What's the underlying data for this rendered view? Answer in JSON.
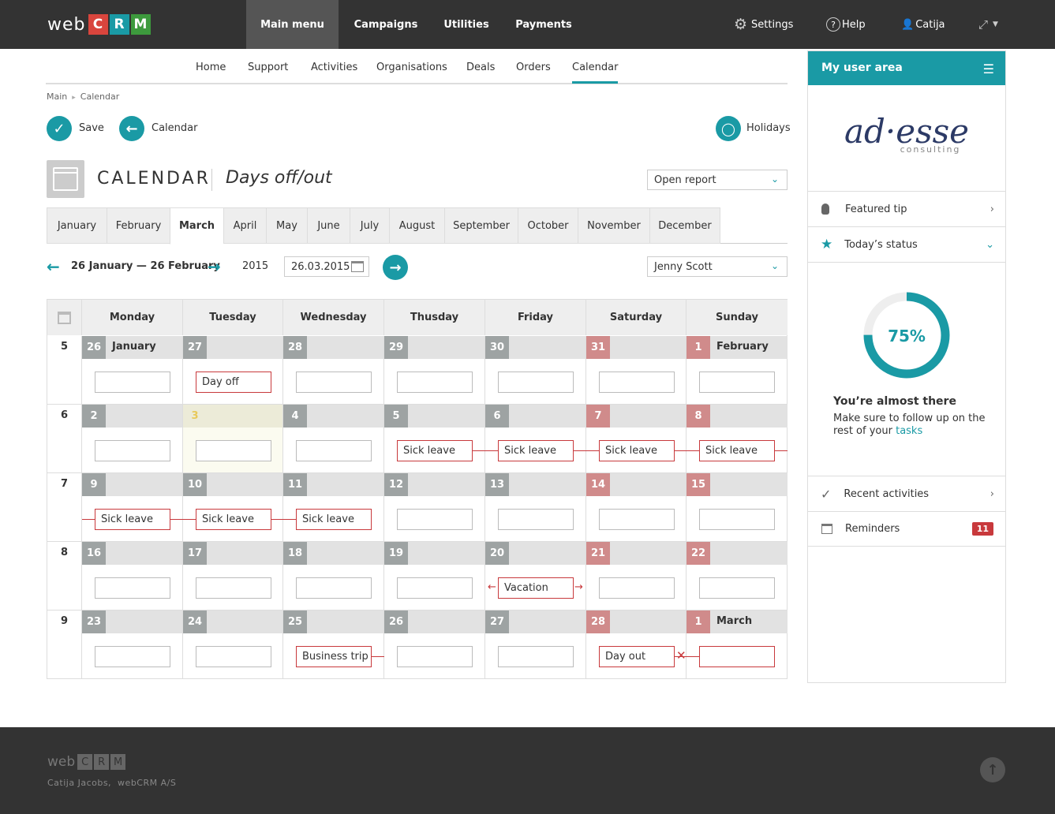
{
  "topbar": {
    "logo_web": "web",
    "logo_c": "C",
    "logo_r": "R",
    "logo_m": "M",
    "nav": [
      "Main menu",
      "Campaigns",
      "Utilities",
      "Payments"
    ],
    "settings": "Settings",
    "help": "Help",
    "user": "Catija"
  },
  "subnav": [
    "Home",
    "Support",
    "Activities",
    "Organisations",
    "Deals",
    "Orders",
    "Calendar"
  ],
  "breadcrumb": [
    "Main",
    "Calendar"
  ],
  "actions": {
    "save": "Save",
    "calendar": "Calendar",
    "holidays": "Holidays"
  },
  "title": {
    "main": "CALENDAR",
    "sub": "Days off/out"
  },
  "report_select": "Open report",
  "months": [
    "January",
    "February",
    "March",
    "April",
    "May",
    "June",
    "July",
    "August",
    "September",
    "October",
    "November",
    "December"
  ],
  "range": {
    "label": "26 January — 26 February",
    "year": "2015",
    "date": "26.03.2015"
  },
  "person_select": "Jenny Scott",
  "days": [
    "Monday",
    "Tuesday",
    "Wednesday",
    "Thusday",
    "Friday",
    "Saturday",
    "Sunday"
  ],
  "weeks": [
    {
      "num": "5",
      "cells": [
        {
          "d": "26",
          "m": "January"
        },
        {
          "d": "27",
          "t": "Day off"
        },
        {
          "d": "28"
        },
        {
          "d": "29"
        },
        {
          "d": "30"
        },
        {
          "d": "31"
        },
        {
          "d": "1",
          "m": "February"
        }
      ]
    },
    {
      "num": "6",
      "cells": [
        {
          "d": "2"
        },
        {
          "d": "3"
        },
        {
          "d": "4"
        },
        {
          "d": "5",
          "t": "Sick leave"
        },
        {
          "d": "6",
          "t": "Sick leave"
        },
        {
          "d": "7",
          "t": "Sick leave"
        },
        {
          "d": "8",
          "t": "Sick leave"
        }
      ]
    },
    {
      "num": "7",
      "cells": [
        {
          "d": "9",
          "t": "Sick leave"
        },
        {
          "d": "10",
          "t": "Sick leave"
        },
        {
          "d": "11",
          "t": "Sick leave"
        },
        {
          "d": "12"
        },
        {
          "d": "13"
        },
        {
          "d": "14"
        },
        {
          "d": "15"
        }
      ]
    },
    {
      "num": "8",
      "cells": [
        {
          "d": "16"
        },
        {
          "d": "17"
        },
        {
          "d": "18"
        },
        {
          "d": "19"
        },
        {
          "d": "20",
          "t": "Vacation"
        },
        {
          "d": "21"
        },
        {
          "d": "22"
        }
      ]
    },
    {
      "num": "9",
      "cells": [
        {
          "d": "23"
        },
        {
          "d": "24"
        },
        {
          "d": "25",
          "t": "Business trip"
        },
        {
          "d": "26"
        },
        {
          "d": "27"
        },
        {
          "d": "28",
          "t": "Day out"
        },
        {
          "d": "1",
          "m": "March",
          "red": true
        }
      ]
    }
  ],
  "sidebar": {
    "title": "My user area",
    "logo_text": "ad·esse",
    "logo_sub": "consulting",
    "featured_tip": "Featured tip",
    "todays_status": "Today’s status",
    "progress": 75,
    "progress_label": "75%",
    "almost": "You’re almost there",
    "follow": "Make sure to follow up on the rest of your",
    "tasks": "tasks",
    "recent": "Recent activities",
    "reminders": "Reminders",
    "reminders_count": "11"
  },
  "footer": {
    "logo_web": "web",
    "logo_c": "C",
    "logo_r": "R",
    "logo_m": "M",
    "credit": "Catija Jacobs,  webCRM A/S"
  },
  "colors": {
    "accent": "#1a9aa5",
    "topbar": "#333333",
    "weekend": "#d08b8b",
    "red": "#c8393c"
  }
}
